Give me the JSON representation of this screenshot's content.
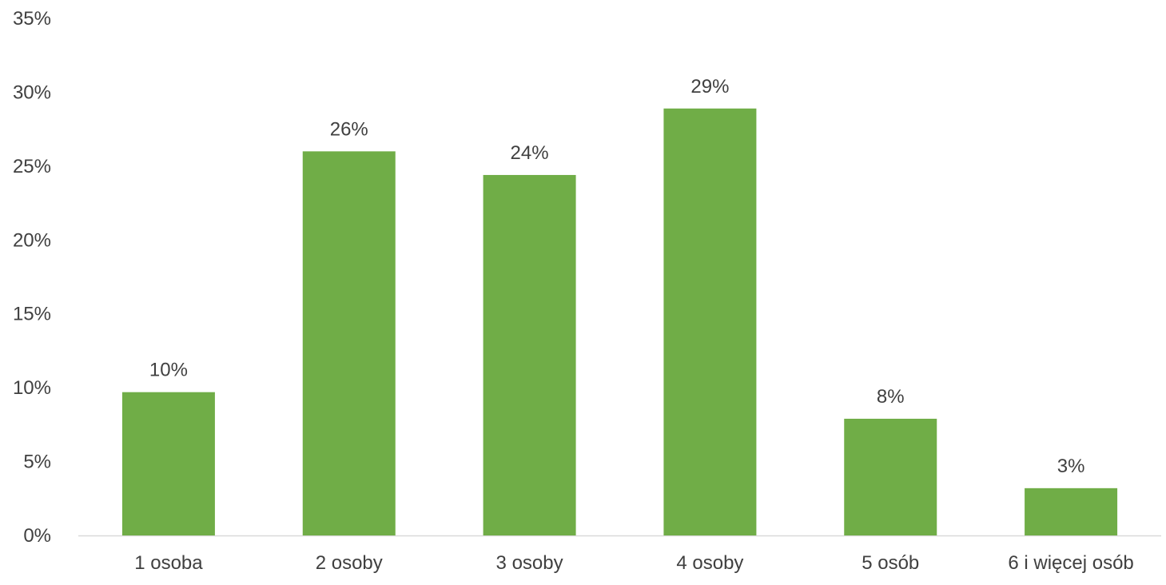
{
  "chart_data": {
    "type": "bar",
    "categories": [
      "1 osoba",
      "2 osoby",
      "3 osoby",
      "4 osoby",
      "5 osób",
      "6 i więcej osób"
    ],
    "values": [
      9.7,
      26.0,
      24.4,
      28.9,
      7.9,
      3.2
    ],
    "data_labels": [
      "10%",
      "26%",
      "24%",
      "29%",
      "8%",
      "3%"
    ],
    "y_ticks": [
      "0%",
      "5%",
      "10%",
      "15%",
      "20%",
      "25%",
      "30%",
      "35%"
    ],
    "ylim": [
      0,
      35
    ],
    "title": "",
    "xlabel": "",
    "ylabel": "",
    "grid": false,
    "legend": "none",
    "colors": {
      "bar": "#70ad47",
      "axis": "#d9d9d9",
      "text": "#404040"
    }
  }
}
